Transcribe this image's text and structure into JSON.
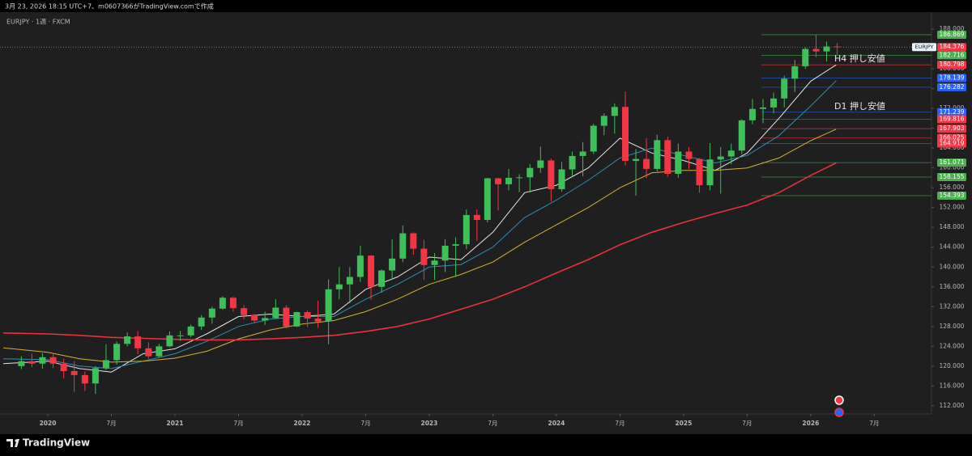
{
  "header": {
    "caption": "3月 23, 2026 18:15 UTC+7、m0607366がTradingView.comで作成"
  },
  "footer": {
    "brand": "TradingView"
  },
  "chart_data": {
    "type": "candlestick",
    "title": "EURJPY · 1週 · FXCM",
    "symbol_tag": "EURJPY",
    "up_color": "#3fbf5a",
    "down_color": "#f23645",
    "xlim": [
      2019.624,
      2026.95
    ],
    "ylim": [
      110.35,
      190.94
    ],
    "xticks": [
      2020,
      {
        "value": 2020.5,
        "label": "7月"
      },
      2021,
      {
        "value": 2021.5,
        "label": "7月"
      },
      2022,
      {
        "value": 2022.5,
        "label": "7月"
      },
      2023,
      {
        "value": 2023.5,
        "label": "7月"
      },
      2024,
      {
        "value": 2024.5,
        "label": "7月"
      },
      2025,
      {
        "value": 2025.5,
        "label": "7月"
      },
      2026,
      {
        "value": 2026.5,
        "label": "7月"
      }
    ],
    "yticks": [
      {
        "value": 112,
        "label": "112.000"
      },
      {
        "value": 116,
        "label": "116.000"
      },
      {
        "value": 120,
        "label": "120.000"
      },
      {
        "value": 124,
        "label": "124.000"
      },
      {
        "value": 128,
        "label": "128.000"
      },
      {
        "value": 132,
        "label": "132.000"
      },
      {
        "value": 136,
        "label": "136.000"
      },
      {
        "value": 140,
        "label": "140.000"
      },
      {
        "value": 144,
        "label": "144.000"
      },
      {
        "value": 148,
        "label": "148.000"
      },
      {
        "value": 152,
        "label": "152.000"
      },
      {
        "value": 156,
        "label": "156.000"
      },
      {
        "value": 160,
        "label": "160.000"
      },
      {
        "value": 164,
        "label": "164.000"
      },
      {
        "value": 168,
        "label": "168.000"
      },
      {
        "value": 172,
        "label": "172.000"
      },
      {
        "value": 176,
        "label": "176.000"
      },
      {
        "value": 180,
        "label": "180.000"
      },
      {
        "value": 184,
        "label": "184.000"
      },
      {
        "value": 188,
        "label": "188.000"
      }
    ],
    "x": [
      2019.792,
      2019.875,
      2019.958,
      2020.042,
      2020.125,
      2020.208,
      2020.292,
      2020.375,
      2020.458,
      2020.542,
      2020.625,
      2020.708,
      2020.792,
      2020.875,
      2020.958,
      2021.042,
      2021.125,
      2021.208,
      2021.292,
      2021.375,
      2021.458,
      2021.542,
      2021.625,
      2021.708,
      2021.792,
      2021.875,
      2021.958,
      2022.042,
      2022.125,
      2022.208,
      2022.292,
      2022.375,
      2022.458,
      2022.542,
      2022.625,
      2022.708,
      2022.792,
      2022.875,
      2022.958,
      2023.042,
      2023.125,
      2023.208,
      2023.292,
      2023.375,
      2023.458,
      2023.542,
      2023.625,
      2023.708,
      2023.792,
      2023.875,
      2023.958,
      2024.042,
      2024.125,
      2024.208,
      2024.292,
      2024.375,
      2024.458,
      2024.542,
      2024.625,
      2024.708,
      2024.792,
      2024.875,
      2024.958,
      2025.042,
      2025.125,
      2025.208,
      2025.292,
      2025.375,
      2025.458,
      2025.542,
      2025.625,
      2025.708,
      2025.792,
      2025.875,
      2025.958,
      2026.042,
      2026.125,
      2026.208
    ],
    "open": [
      120.0,
      121.0,
      120.5,
      121.8,
      120.5,
      119.0,
      118.2,
      116.5,
      119.6,
      121.2,
      124.5,
      126.0,
      123.6,
      122.0,
      124.0,
      126.2,
      126.2,
      128.0,
      129.8,
      131.6,
      133.8,
      131.7,
      130.3,
      129.2,
      129.7,
      131.8,
      128.0,
      130.9,
      129.6,
      129.0,
      135.5,
      136.5,
      138.0,
      142.3,
      136.0,
      139.3,
      141.7,
      146.8,
      143.7,
      140.4,
      141.3,
      144.3,
      144.6,
      150.5,
      149.5,
      157.9,
      156.7,
      158.0,
      158.1,
      160.0,
      161.5,
      155.7,
      159.7,
      162.4,
      163.3,
      168.5,
      170.5,
      172.3,
      161.4,
      161.8,
      159.8,
      165.6,
      158.8,
      163.3,
      161.8,
      156.5,
      161.7,
      162.3,
      163.5,
      169.6,
      171.9,
      172.2,
      174.0,
      178.0,
      180.5,
      184.0,
      183.5,
      184.5
    ],
    "high": [
      122.0,
      122.5,
      122.6,
      122.4,
      121.5,
      121.0,
      118.9,
      120.0,
      124.4,
      125.0,
      126.8,
      127.1,
      124.8,
      124.5,
      127.0,
      127.1,
      128.4,
      130.3,
      132.0,
      134.1,
      134.0,
      132.3,
      130.5,
      131.0,
      133.5,
      132.3,
      131.0,
      131.2,
      133.2,
      137.5,
      140.0,
      140.0,
      144.3,
      142.4,
      139.5,
      145.6,
      148.4,
      147.0,
      145.5,
      142.8,
      145.6,
      146.0,
      151.6,
      151.6,
      158.0,
      158.0,
      159.8,
      158.7,
      160.8,
      164.3,
      161.9,
      161.2,
      163.3,
      165.2,
      168.9,
      171.0,
      173.0,
      175.4,
      163.8,
      166.0,
      166.7,
      166.3,
      164.9,
      164.2,
      162.0,
      165.0,
      164.2,
      164.9,
      169.8,
      173.9,
      173.9,
      175.2,
      178.6,
      181.8,
      184.3,
      186.9,
      185.5,
      185.2
    ],
    "low": [
      119.4,
      119.8,
      119.5,
      119.6,
      117.5,
      114.8,
      115.0,
      114.4,
      119.2,
      120.3,
      124.0,
      122.4,
      121.5,
      121.7,
      123.8,
      125.1,
      125.8,
      127.3,
      128.6,
      131.4,
      131.0,
      129.4,
      128.7,
      128.3,
      129.5,
      127.6,
      127.9,
      127.9,
      127.7,
      124.4,
      133.5,
      132.7,
      137.0,
      133.4,
      134.8,
      137.4,
      141.0,
      142.5,
      137.4,
      137.4,
      139.0,
      138.0,
      143.6,
      145.3,
      149.0,
      151.4,
      155.5,
      155.1,
      155.0,
      159.0,
      153.2,
      155.2,
      158.2,
      158.3,
      162.8,
      166.6,
      166.9,
      160.5,
      154.4,
      157.9,
      159.3,
      158.2,
      158.0,
      159.8,
      155.0,
      155.5,
      154.8,
      160.7,
      162.8,
      168.8,
      169.0,
      171.0,
      172.2,
      175.3,
      180.0,
      182.3,
      181.5,
      182.7
    ],
    "close": [
      121.0,
      120.5,
      121.8,
      120.5,
      119.0,
      118.2,
      116.5,
      119.6,
      121.2,
      124.5,
      126.0,
      123.6,
      122.0,
      124.0,
      126.2,
      126.2,
      128.0,
      129.8,
      131.6,
      133.8,
      131.7,
      130.3,
      129.2,
      129.7,
      131.8,
      128.0,
      130.9,
      129.6,
      129.0,
      135.5,
      136.5,
      138.0,
      142.3,
      136.0,
      139.3,
      141.7,
      146.8,
      143.7,
      140.4,
      141.3,
      144.3,
      144.6,
      150.5,
      149.5,
      157.9,
      156.7,
      158.0,
      158.1,
      160.0,
      161.5,
      155.7,
      159.7,
      162.4,
      163.3,
      168.5,
      170.5,
      172.3,
      161.4,
      161.8,
      159.8,
      165.6,
      158.8,
      163.3,
      161.8,
      156.5,
      161.7,
      162.3,
      163.5,
      169.6,
      171.9,
      172.2,
      174.0,
      178.0,
      180.5,
      184.0,
      183.5,
      184.5,
      184.4
    ],
    "moving_averages": [
      {
        "color": "#e6e6e6",
        "x": [
          2019.65,
          2020.0,
          2020.25,
          2020.5,
          2020.75,
          2021.0,
          2021.25,
          2021.5,
          2021.75,
          2022.0,
          2022.25,
          2022.5,
          2022.75,
          2023.0,
          2023.25,
          2023.5,
          2023.75,
          2024.0,
          2024.25,
          2024.5,
          2024.75,
          2025.0,
          2025.25,
          2025.5,
          2025.75,
          2026.0,
          2026.2
        ],
        "values": [
          120.5,
          121,
          119.5,
          118.8,
          122.5,
          123.5,
          126.5,
          130,
          130.5,
          130,
          130.5,
          135.5,
          138,
          142,
          141.5,
          147,
          155,
          156.5,
          160,
          166,
          163,
          161.5,
          159.5,
          163,
          170,
          177.5,
          180.8
        ]
      },
      {
        "color": "#2b8fb8",
        "x": [
          2019.65,
          2020.0,
          2020.25,
          2020.5,
          2020.75,
          2021.0,
          2021.25,
          2021.5,
          2021.75,
          2022.0,
          2022.25,
          2022.5,
          2022.75,
          2023.0,
          2023.25,
          2023.5,
          2023.75,
          2024.0,
          2024.25,
          2024.5,
          2024.75,
          2025.0,
          2025.25,
          2025.5,
          2025.75,
          2026.0,
          2026.2
        ],
        "values": [
          121.5,
          121.3,
          120,
          119.5,
          121,
          122.5,
          125,
          128,
          129.5,
          130,
          130,
          133.5,
          136.5,
          140,
          140.5,
          144,
          150,
          153.5,
          157.5,
          162,
          164,
          162.5,
          161,
          162.5,
          166.5,
          172.5,
          177.6
        ]
      },
      {
        "color": "#d4b234",
        "x": [
          2019.65,
          2020.0,
          2020.25,
          2020.5,
          2020.75,
          2021.0,
          2021.25,
          2021.5,
          2021.75,
          2022.0,
          2022.25,
          2022.5,
          2022.75,
          2023.0,
          2023.25,
          2023.5,
          2023.75,
          2024.0,
          2024.25,
          2024.5,
          2024.75,
          2025.0,
          2025.25,
          2025.5,
          2025.75,
          2026.0,
          2026.2
        ],
        "values": [
          123.7,
          122.8,
          121.5,
          120.8,
          121,
          121.6,
          123,
          125.5,
          127.3,
          128.5,
          129.2,
          131,
          133.5,
          136.5,
          138.5,
          141,
          145,
          148.5,
          152,
          156,
          159,
          159.5,
          159.5,
          160,
          162,
          165.5,
          167.8
        ]
      },
      {
        "color": "#e8323c",
        "x": [
          2019.65,
          2020.0,
          2020.25,
          2020.5,
          2020.75,
          2021.0,
          2021.25,
          2021.5,
          2021.75,
          2022.0,
          2022.25,
          2022.5,
          2022.75,
          2023.0,
          2023.25,
          2023.5,
          2023.75,
          2024.0,
          2024.25,
          2024.5,
          2024.75,
          2025.0,
          2025.25,
          2025.5,
          2025.75,
          2026.0,
          2026.2
        ],
        "values": [
          126.7,
          126.5,
          126.2,
          125.8,
          125.6,
          125.4,
          125.3,
          125.3,
          125.5,
          125.8,
          126.2,
          127,
          128,
          129.5,
          131.5,
          133.5,
          136,
          138.8,
          141.5,
          144.5,
          147,
          149,
          150.8,
          152.5,
          155,
          158.5,
          161.0
        ]
      }
    ],
    "levels": [
      {
        "price": 186.869,
        "color": "#4caf50"
      },
      {
        "price": 184.376,
        "color": "#f23645",
        "current": true
      },
      {
        "price": 182.716,
        "color": "#4caf50"
      },
      {
        "price": 180.798,
        "color": "#f23645"
      },
      {
        "price": 178.139,
        "color": "#2962ff"
      },
      {
        "price": 176.282,
        "color": "#2962ff"
      },
      {
        "price": 171.239,
        "color": "#2962ff"
      },
      {
        "price": 169.816,
        "color": "#f23645"
      },
      {
        "price": 167.903,
        "color": "#f23645"
      },
      {
        "price": 166.025,
        "color": "#f23645"
      },
      {
        "price": 164.919,
        "color": "#f23645"
      },
      {
        "price": 161.071,
        "color": "#4caf50"
      },
      {
        "price": 158.155,
        "color": "#4caf50"
      },
      {
        "price": 154.393,
        "color": "#4caf50"
      }
    ],
    "annotations": [
      "H4 押し安値",
      "D1 押し安値"
    ]
  }
}
